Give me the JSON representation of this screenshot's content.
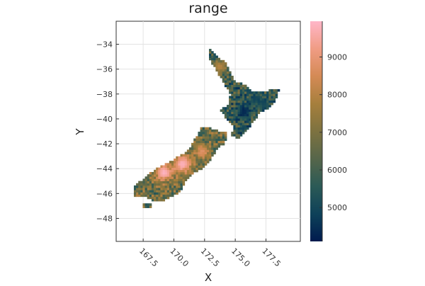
{
  "chart_data": {
    "type": "heatmap",
    "title": "range",
    "xlabel": "X",
    "ylabel": "Y",
    "xlim": [
      165.3,
      180.3
    ],
    "ylim": [
      -49.85,
      -32.15
    ],
    "xticks": [
      167.5,
      170.0,
      172.5,
      175.0,
      177.5
    ],
    "xtick_labels": [
      "167.5",
      "170.0",
      "172.5",
      "175.0",
      "177.5"
    ],
    "yticks": [
      -34,
      -36,
      -38,
      -40,
      -42,
      -44,
      -46,
      -48
    ],
    "ytick_labels": [
      "−34",
      "−36",
      "−38",
      "−40",
      "−42",
      "−44",
      "−46",
      "−48"
    ],
    "colorbar": {
      "range": [
        4100,
        9950
      ],
      "ticks": [
        5000,
        6000,
        7000,
        8000,
        9000
      ],
      "tick_labels": [
        "5000",
        "6000",
        "7000",
        "8000",
        "9000"
      ],
      "colormap": [
        "#001b4e",
        "#0e4159",
        "#2b5a56",
        "#56664a",
        "#7d7240",
        "#a67f3d",
        "#d48a55",
        "#f09c84",
        "#ffb6c8"
      ]
    },
    "grid": true,
    "regions": [
      {
        "name": "",
        "outline": [
          [
            172.9,
            -34.4
          ],
          [
            173.4,
            -34.9
          ],
          [
            174.2,
            -35.4
          ],
          [
            174.6,
            -36.3
          ],
          [
            174.9,
            -36.9
          ],
          [
            175.8,
            -37.3
          ],
          [
            176.3,
            -37.7
          ],
          [
            177.2,
            -37.9
          ],
          [
            178.0,
            -37.6
          ],
          [
            178.6,
            -37.7
          ],
          [
            178.2,
            -38.6
          ],
          [
            177.9,
            -39.1
          ],
          [
            177.1,
            -39.4
          ],
          [
            176.7,
            -39.9
          ],
          [
            176.2,
            -40.6
          ],
          [
            175.8,
            -41.1
          ],
          [
            175.2,
            -41.6
          ],
          [
            174.6,
            -41.3
          ],
          [
            174.9,
            -40.6
          ],
          [
            174.2,
            -39.9
          ],
          [
            173.8,
            -39.3
          ],
          [
            174.5,
            -38.8
          ],
          [
            174.6,
            -38.0
          ],
          [
            174.0,
            -37.0
          ],
          [
            173.4,
            -36.0
          ],
          [
            172.9,
            -35.2
          ]
        ],
        "base_value": 5800
      },
      {
        "name": "",
        "outline": [
          [
            172.2,
            -40.6
          ],
          [
            173.0,
            -40.7
          ],
          [
            173.4,
            -40.9
          ],
          [
            174.3,
            -41.1
          ],
          [
            174.2,
            -41.9
          ],
          [
            173.5,
            -42.5
          ],
          [
            172.8,
            -43.5
          ],
          [
            172.6,
            -43.8
          ],
          [
            171.4,
            -44.5
          ],
          [
            171.0,
            -45.0
          ],
          [
            170.6,
            -45.8
          ],
          [
            169.8,
            -46.3
          ],
          [
            169.0,
            -46.6
          ],
          [
            168.2,
            -46.6
          ],
          [
            167.8,
            -46.3
          ],
          [
            166.7,
            -46.2
          ],
          [
            166.7,
            -45.5
          ],
          [
            167.4,
            -44.9
          ],
          [
            168.4,
            -44.1
          ],
          [
            169.4,
            -43.6
          ],
          [
            170.4,
            -43.0
          ],
          [
            171.2,
            -42.5
          ],
          [
            171.6,
            -41.7
          ],
          [
            172.1,
            -41.0
          ]
        ],
        "base_value": 6700
      },
      {
        "name": "",
        "outline": [
          [
            167.5,
            -46.8
          ],
          [
            168.2,
            -46.8
          ],
          [
            168.1,
            -47.2
          ],
          [
            167.5,
            -47.2
          ]
        ],
        "base_value": 6600
      }
    ],
    "peaks": [
      {
        "x": 169.2,
        "y": -44.3,
        "value": 9900,
        "spread": 0.7
      },
      {
        "x": 170.7,
        "y": -43.6,
        "value": 9800,
        "spread": 0.8
      },
      {
        "x": 172.3,
        "y": -42.6,
        "value": 8800,
        "spread": 0.6
      },
      {
        "x": 173.7,
        "y": -35.8,
        "value": 8000,
        "spread": 0.6
      },
      {
        "x": 175.7,
        "y": -39.4,
        "value": 4300,
        "spread": 0.6
      },
      {
        "x": 176.6,
        "y": -38.4,
        "value": 4900,
        "spread": 0.5
      },
      {
        "x": 177.3,
        "y": -38.8,
        "value": 5000,
        "spread": 0.5
      }
    ]
  }
}
